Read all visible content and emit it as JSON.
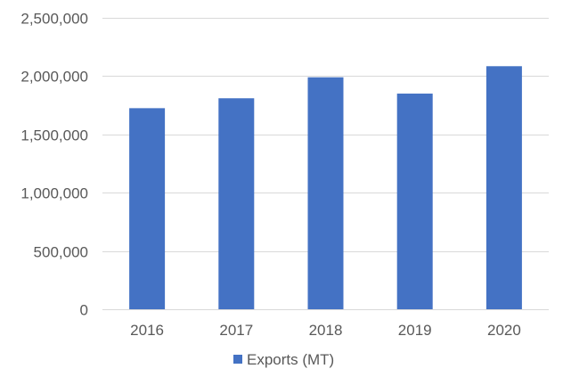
{
  "chart_data": {
    "type": "bar",
    "title": "",
    "xlabel": "",
    "ylabel": "",
    "categories": [
      "2016",
      "2017",
      "2018",
      "2019",
      "2020"
    ],
    "series": [
      {
        "name": "Exports (MT)",
        "color": "#4472c4",
        "values": [
          1725000,
          1810000,
          1990000,
          1850000,
          2085000
        ]
      }
    ],
    "ylim": [
      0,
      2500000
    ],
    "yticks": [
      0,
      500000,
      1000000,
      1500000,
      2000000,
      2500000
    ],
    "ytick_labels": [
      "0",
      "500,000",
      "1,000,000",
      "1,500,000",
      "2,000,000",
      "2,500,000"
    ],
    "grid": true,
    "legend_position": "bottom"
  }
}
